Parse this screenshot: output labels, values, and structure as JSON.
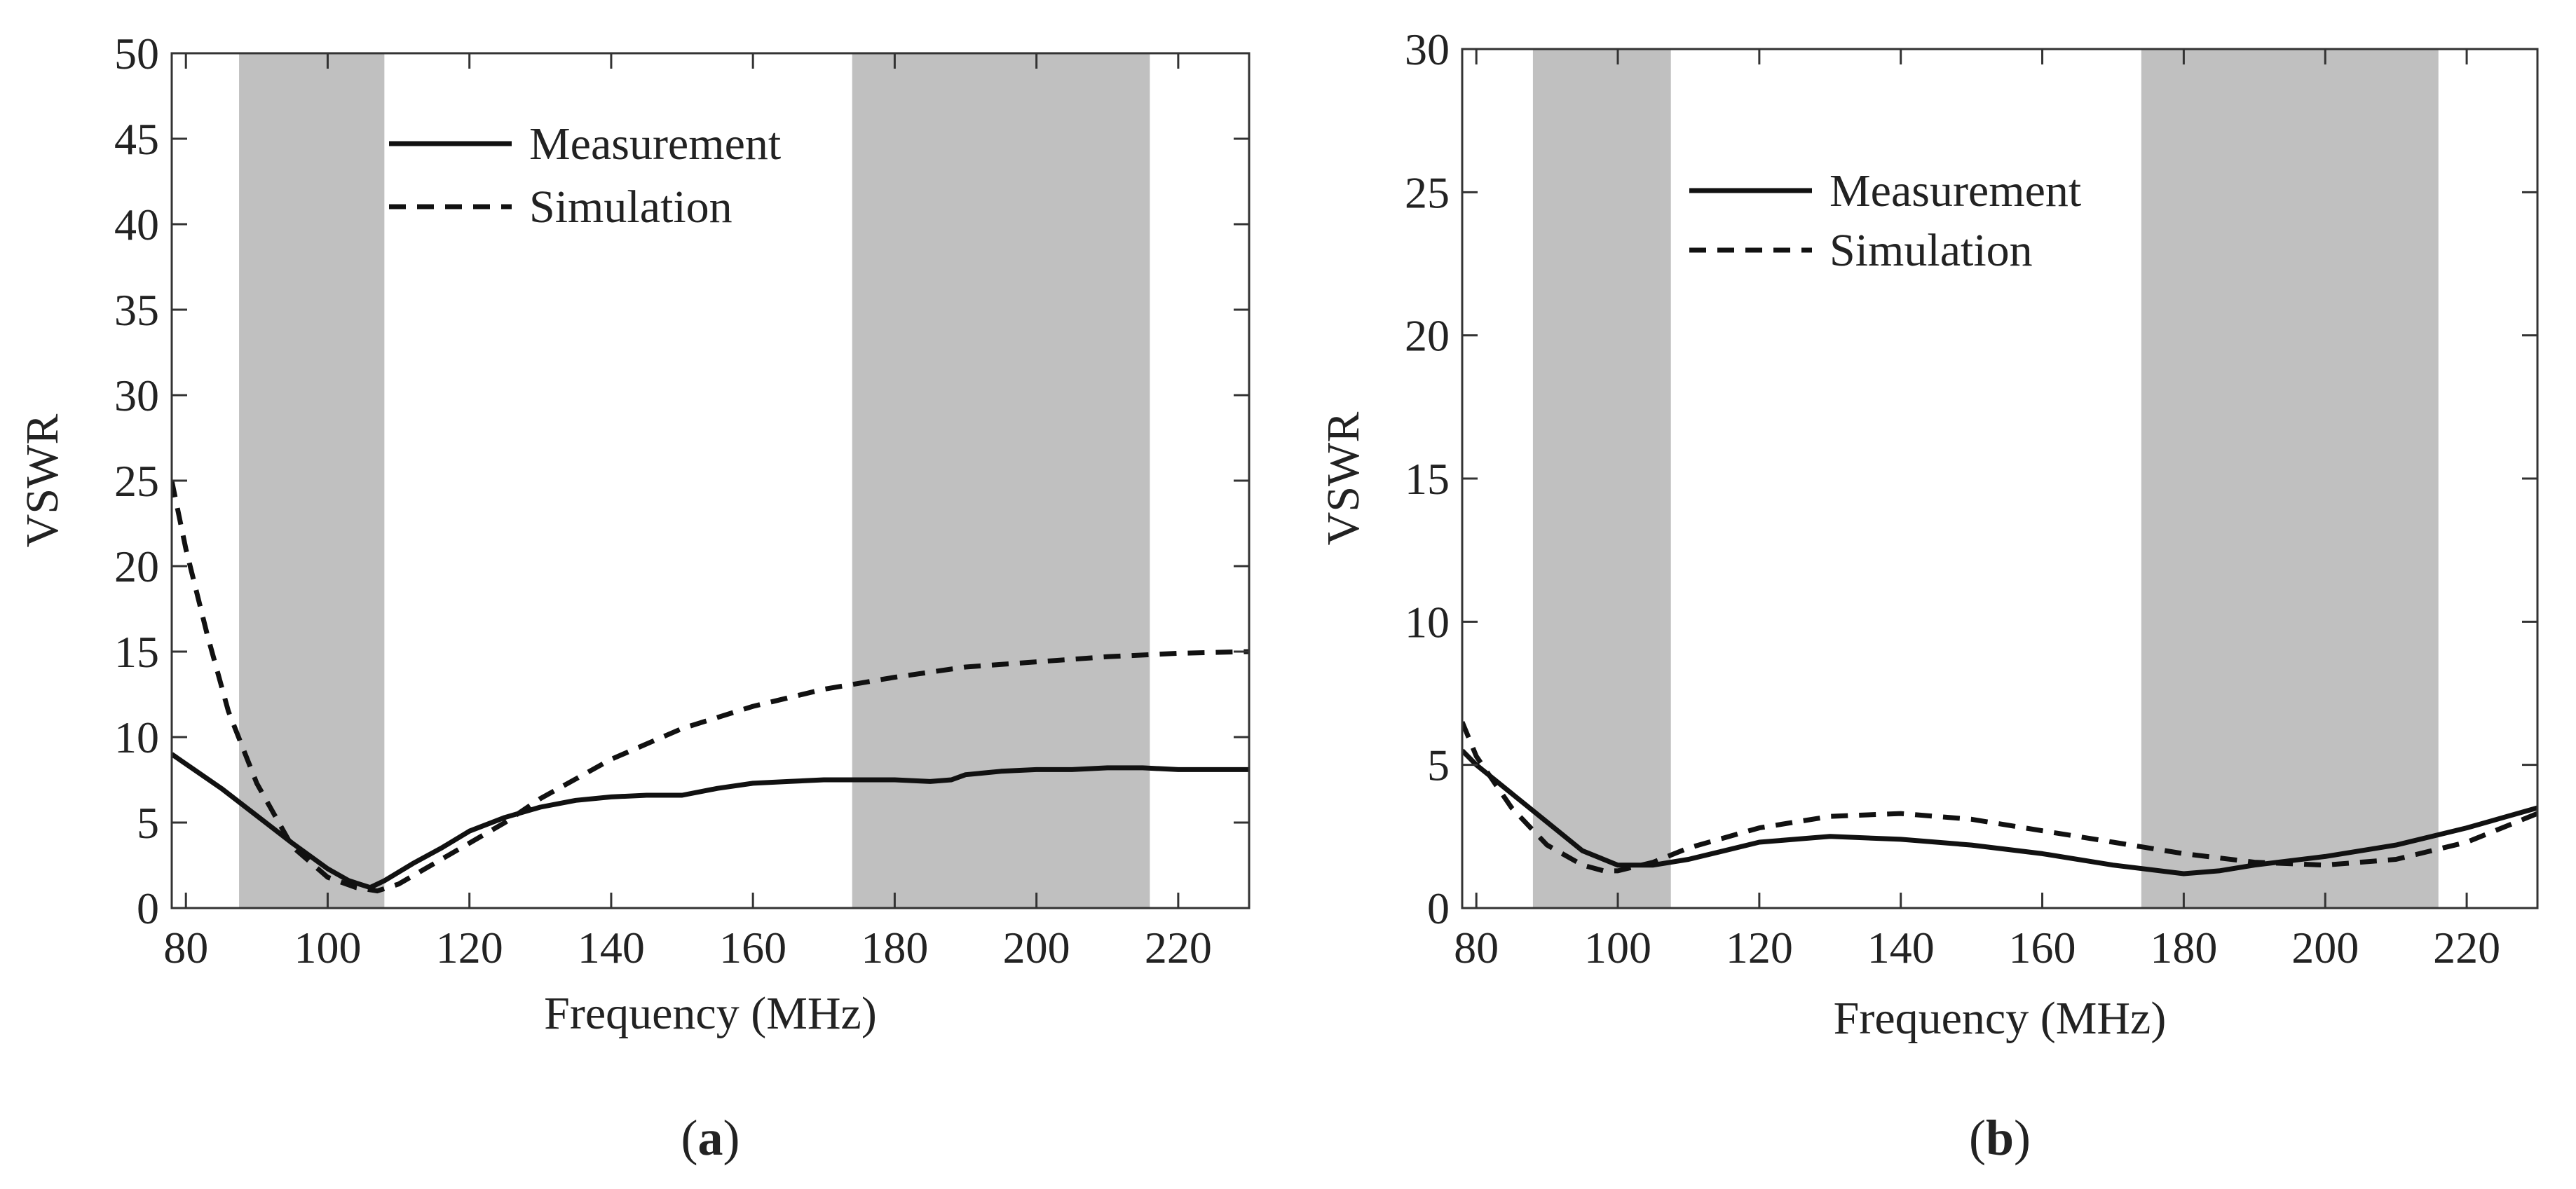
{
  "figure_type": "Two-panel VSWR comparison",
  "colors": {
    "shade": "#c0c0c0",
    "line": "#111111",
    "background": "#ffffff"
  },
  "chart_data": [
    {
      "panel_label": "a",
      "type": "line",
      "xlabel": "Frequency (MHz)",
      "ylabel": "VSWR",
      "xlim": [
        78,
        230
      ],
      "ylim": [
        0,
        50
      ],
      "xticks": [
        80,
        100,
        120,
        140,
        160,
        180,
        200,
        220
      ],
      "yticks": [
        0,
        5,
        10,
        15,
        20,
        25,
        30,
        35,
        40,
        45,
        50
      ],
      "grid": false,
      "legend_position": "top-center",
      "shaded_bands": [
        [
          87.5,
          108
        ],
        [
          174,
          216
        ]
      ],
      "series": [
        {
          "name": "Measurement",
          "style": "solid",
          "x": [
            78,
            85,
            90,
            95,
            100,
            103,
            106,
            108,
            112,
            116,
            120,
            125,
            130,
            135,
            140,
            145,
            150,
            155,
            160,
            165,
            170,
            175,
            180,
            185,
            188,
            190,
            195,
            200,
            205,
            210,
            215,
            220,
            225,
            230
          ],
          "y": [
            9.0,
            7.0,
            5.4,
            3.8,
            2.3,
            1.6,
            1.2,
            1.6,
            2.6,
            3.5,
            4.5,
            5.3,
            5.9,
            6.3,
            6.5,
            6.6,
            6.6,
            7.0,
            7.3,
            7.4,
            7.5,
            7.5,
            7.5,
            7.4,
            7.5,
            7.8,
            8.0,
            8.1,
            8.1,
            8.2,
            8.2,
            8.1,
            8.1,
            8.1
          ]
        },
        {
          "name": "Simulation",
          "style": "dashed",
          "x": [
            78,
            80,
            83,
            86,
            90,
            95,
            100,
            104,
            107,
            110,
            115,
            120,
            125,
            130,
            140,
            150,
            160,
            170,
            180,
            190,
            200,
            210,
            220,
            230
          ],
          "y": [
            25.0,
            21.0,
            16.0,
            11.5,
            7.3,
            3.6,
            1.8,
            1.2,
            1.0,
            1.4,
            2.6,
            3.8,
            5.0,
            6.4,
            8.7,
            10.5,
            11.8,
            12.8,
            13.5,
            14.1,
            14.4,
            14.7,
            14.9,
            15.0
          ]
        }
      ]
    },
    {
      "panel_label": "b",
      "type": "line",
      "xlabel": "Frequency (MHz)",
      "ylabel": "VSWR",
      "xlim": [
        78,
        230
      ],
      "ylim": [
        0,
        30
      ],
      "xticks": [
        80,
        100,
        120,
        140,
        160,
        180,
        200,
        220
      ],
      "yticks": [
        0,
        5,
        10,
        15,
        20,
        25,
        30
      ],
      "grid": false,
      "legend_position": "top-left",
      "shaded_bands": [
        [
          88,
          107.5
        ],
        [
          174,
          216
        ]
      ],
      "series": [
        {
          "name": "Measurement",
          "style": "solid",
          "x": [
            78,
            80,
            85,
            90,
            95,
            100,
            105,
            110,
            115,
            120,
            125,
            130,
            140,
            150,
            160,
            170,
            180,
            185,
            190,
            200,
            210,
            220,
            230
          ],
          "y": [
            5.5,
            5.0,
            4.0,
            3.0,
            2.0,
            1.5,
            1.5,
            1.7,
            2.0,
            2.3,
            2.4,
            2.5,
            2.4,
            2.2,
            1.9,
            1.5,
            1.2,
            1.3,
            1.5,
            1.8,
            2.2,
            2.8,
            3.5
          ]
        },
        {
          "name": "Simulation",
          "style": "dashed",
          "x": [
            78,
            80,
            85,
            90,
            95,
            98,
            100,
            105,
            110,
            120,
            130,
            140,
            150,
            160,
            170,
            180,
            190,
            200,
            210,
            220,
            230
          ],
          "y": [
            6.5,
            5.3,
            3.5,
            2.2,
            1.5,
            1.3,
            1.3,
            1.6,
            2.1,
            2.8,
            3.2,
            3.3,
            3.1,
            2.7,
            2.3,
            1.9,
            1.6,
            1.5,
            1.7,
            2.3,
            3.3
          ]
        }
      ]
    }
  ]
}
